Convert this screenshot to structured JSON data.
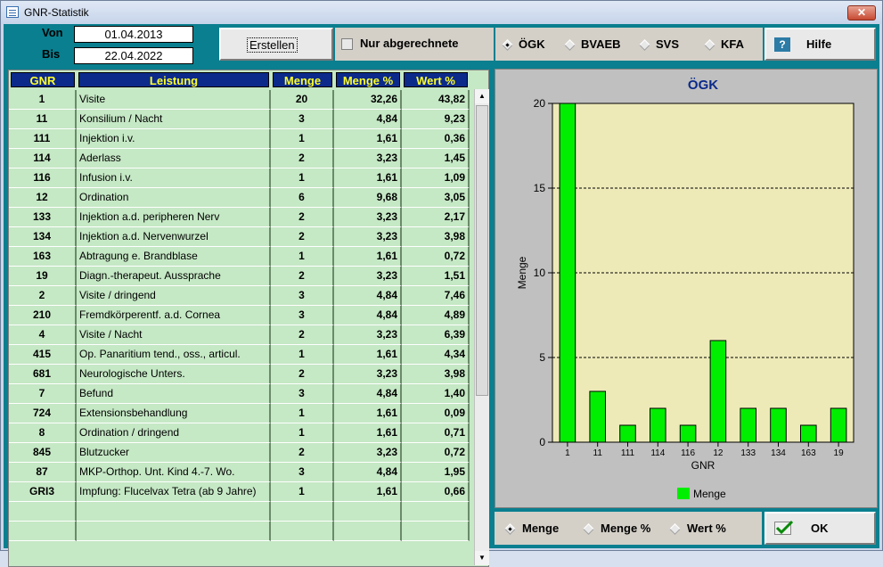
{
  "window": {
    "title": "GNR-Statistik",
    "close_label": "✕"
  },
  "filter": {
    "von_label": "Von",
    "von_value": "01.04.2013",
    "bis_label": "Bis",
    "bis_value": "22.04.2022"
  },
  "toolbar": {
    "erstellen_label": "Erstellen",
    "nur_abgerechnete_label": "Nur abgerechnete",
    "nur_abgerechnete_checked": false,
    "kassen": [
      {
        "label": "ÖGK",
        "selected": true
      },
      {
        "label": "BVAEB",
        "selected": false
      },
      {
        "label": "SVS",
        "selected": false
      },
      {
        "label": "KFA",
        "selected": false
      }
    ],
    "hilfe_icon": "question-icon",
    "hilfe_label": "Hilfe"
  },
  "table": {
    "headers": {
      "gnr": "GNR",
      "leistung": "Leistung",
      "menge": "Menge",
      "menge_pct": "Menge %",
      "wert_pct": "Wert %"
    },
    "rows": [
      {
        "gnr": "1",
        "leistung": "Visite",
        "menge": "20",
        "menge_pct": "32,26",
        "wert_pct": "43,82"
      },
      {
        "gnr": "11",
        "leistung": "Konsilium / Nacht",
        "menge": "3",
        "menge_pct": "4,84",
        "wert_pct": "9,23"
      },
      {
        "gnr": "111",
        "leistung": "Injektion i.v.",
        "menge": "1",
        "menge_pct": "1,61",
        "wert_pct": "0,36"
      },
      {
        "gnr": "114",
        "leistung": "Aderlass",
        "menge": "2",
        "menge_pct": "3,23",
        "wert_pct": "1,45"
      },
      {
        "gnr": "116",
        "leistung": "Infusion i.v.",
        "menge": "1",
        "menge_pct": "1,61",
        "wert_pct": "1,09"
      },
      {
        "gnr": "12",
        "leistung": "Ordination",
        "menge": "6",
        "menge_pct": "9,68",
        "wert_pct": "3,05"
      },
      {
        "gnr": "133",
        "leistung": "Injektion a.d. peripheren Nerv",
        "menge": "2",
        "menge_pct": "3,23",
        "wert_pct": "2,17"
      },
      {
        "gnr": "134",
        "leistung": "Injektion a.d. Nervenwurzel",
        "menge": "2",
        "menge_pct": "3,23",
        "wert_pct": "3,98"
      },
      {
        "gnr": "163",
        "leistung": "Abtragung e. Brandblase",
        "menge": "1",
        "menge_pct": "1,61",
        "wert_pct": "0,72"
      },
      {
        "gnr": "19",
        "leistung": "Diagn.-therapeut. Aussprache",
        "menge": "2",
        "menge_pct": "3,23",
        "wert_pct": "1,51"
      },
      {
        "gnr": "2",
        "leistung": "Visite / dringend",
        "menge": "3",
        "menge_pct": "4,84",
        "wert_pct": "7,46"
      },
      {
        "gnr": "210",
        "leistung": "Fremdkörperentf. a.d. Cornea",
        "menge": "3",
        "menge_pct": "4,84",
        "wert_pct": "4,89"
      },
      {
        "gnr": "4",
        "leistung": "Visite / Nacht",
        "menge": "2",
        "menge_pct": "3,23",
        "wert_pct": "6,39"
      },
      {
        "gnr": "415",
        "leistung": "Op. Panaritium tend., oss., articul.",
        "menge": "1",
        "menge_pct": "1,61",
        "wert_pct": "4,34"
      },
      {
        "gnr": "681",
        "leistung": "Neurologische Unters.",
        "menge": "2",
        "menge_pct": "3,23",
        "wert_pct": "3,98"
      },
      {
        "gnr": "7",
        "leistung": "Befund",
        "menge": "3",
        "menge_pct": "4,84",
        "wert_pct": "1,40"
      },
      {
        "gnr": "724",
        "leistung": "Extensionsbehandlung",
        "menge": "1",
        "menge_pct": "1,61",
        "wert_pct": "0,09"
      },
      {
        "gnr": "8",
        "leistung": "Ordination / dringend",
        "menge": "1",
        "menge_pct": "1,61",
        "wert_pct": "0,71"
      },
      {
        "gnr": "845",
        "leistung": "Blutzucker",
        "menge": "2",
        "menge_pct": "3,23",
        "wert_pct": "0,72"
      },
      {
        "gnr": "87",
        "leistung": "MKP-Orthop. Unt. Kind 4.-7. Wo.",
        "menge": "3",
        "menge_pct": "4,84",
        "wert_pct": "1,95"
      },
      {
        "gnr": "GRI3",
        "leistung": "Impfung: Flucelvax Tetra (ab 9 Jahre)",
        "menge": "1",
        "menge_pct": "1,61",
        "wert_pct": "0,66"
      },
      {
        "gnr": "",
        "leistung": "",
        "menge": "",
        "menge_pct": "",
        "wert_pct": ""
      },
      {
        "gnr": "",
        "leistung": "",
        "menge": "",
        "menge_pct": "",
        "wert_pct": ""
      }
    ]
  },
  "chart_data": {
    "type": "bar",
    "title": "ÖGK",
    "xlabel": "GNR",
    "ylabel": "Menge",
    "categories": [
      "1",
      "11",
      "111",
      "114",
      "116",
      "12",
      "133",
      "134",
      "163",
      "19"
    ],
    "series": [
      {
        "name": "Menge",
        "values": [
          20,
          3,
          1,
          2,
          1,
          6,
          2,
          2,
          1,
          2
        ]
      }
    ],
    "ylim": [
      0,
      20
    ],
    "yticks": [
      0,
      5,
      10,
      15,
      20
    ],
    "grid": true,
    "legend": "bottom",
    "colors": {
      "bar": "#00ee00",
      "plot_bg": "#eeeab8",
      "title": "#0b2a8a"
    }
  },
  "chart_options": {
    "modes": [
      {
        "label": "Menge",
        "selected": true
      },
      {
        "label": "Menge %",
        "selected": false
      },
      {
        "label": "Wert %",
        "selected": false
      }
    ],
    "ok_icon": "checkmark-icon",
    "ok_label": "OK"
  }
}
